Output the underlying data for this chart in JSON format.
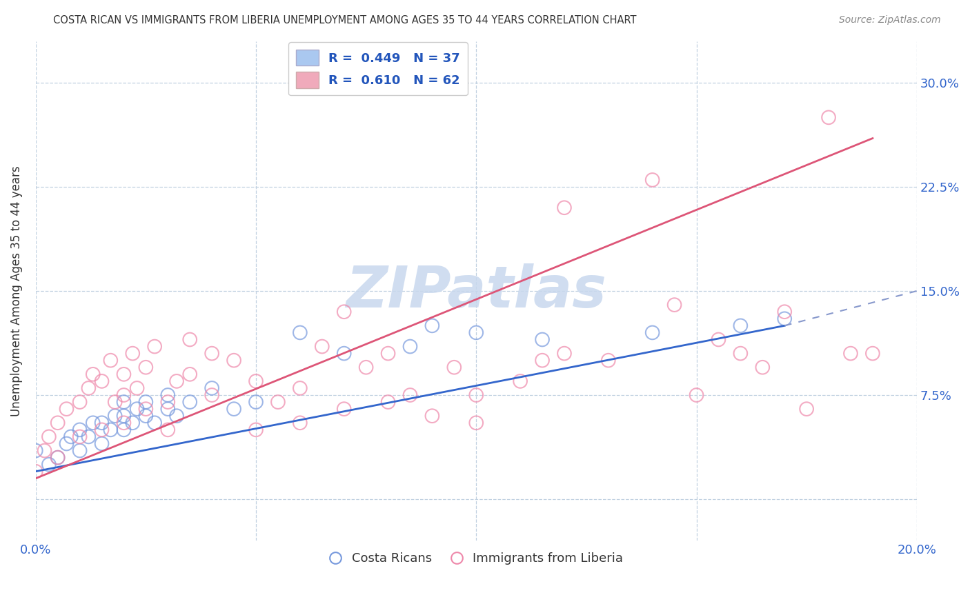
{
  "title": "COSTA RICAN VS IMMIGRANTS FROM LIBERIA UNEMPLOYMENT AMONG AGES 35 TO 44 YEARS CORRELATION CHART",
  "source": "Source: ZipAtlas.com",
  "ylabel": "Unemployment Among Ages 35 to 44 years",
  "watermark": "ZIPatlas",
  "xlim": [
    0.0,
    20.0
  ],
  "ylim": [
    -3.0,
    33.0
  ],
  "yticks": [
    0.0,
    7.5,
    15.0,
    22.5,
    30.0
  ],
  "yticklabels_right": [
    "",
    "7.5%",
    "15.0%",
    "22.5%",
    "30.0%"
  ],
  "xticks": [
    0.0,
    5.0,
    10.0,
    15.0,
    20.0
  ],
  "xticklabels": [
    "0.0%",
    "",
    "",
    "",
    "20.0%"
  ],
  "legend_r_n": [
    {
      "r": "0.449",
      "n": "37",
      "patch_color": "#aac8f0",
      "text_color": "#2255bb"
    },
    {
      "r": "0.610",
      "n": "62",
      "patch_color": "#f0aabb",
      "text_color": "#2255bb"
    }
  ],
  "blue_scatter_x": [
    0.0,
    0.3,
    0.5,
    0.7,
    0.8,
    1.0,
    1.0,
    1.2,
    1.3,
    1.5,
    1.5,
    1.7,
    1.8,
    2.0,
    2.0,
    2.0,
    2.2,
    2.3,
    2.5,
    2.5,
    2.7,
    3.0,
    3.0,
    3.2,
    3.5,
    4.0,
    4.5,
    5.0,
    6.0,
    7.0,
    8.5,
    9.0,
    10.0,
    11.5,
    14.0,
    16.0,
    17.0
  ],
  "blue_scatter_y": [
    3.5,
    2.5,
    3.0,
    4.0,
    4.5,
    3.5,
    5.0,
    4.5,
    5.5,
    4.0,
    5.5,
    5.0,
    6.0,
    5.0,
    6.0,
    7.0,
    5.5,
    6.5,
    6.0,
    7.0,
    5.5,
    6.5,
    7.5,
    6.0,
    7.0,
    8.0,
    6.5,
    7.0,
    12.0,
    10.5,
    11.0,
    12.5,
    12.0,
    11.5,
    12.0,
    12.5,
    13.0
  ],
  "pink_scatter_x": [
    0.0,
    0.2,
    0.3,
    0.5,
    0.5,
    0.7,
    1.0,
    1.0,
    1.2,
    1.3,
    1.5,
    1.5,
    1.7,
    1.8,
    2.0,
    2.0,
    2.0,
    2.2,
    2.3,
    2.5,
    2.5,
    2.7,
    3.0,
    3.0,
    3.2,
    3.5,
    3.5,
    4.0,
    4.0,
    4.5,
    5.0,
    5.0,
    5.5,
    6.0,
    6.0,
    6.5,
    7.0,
    7.0,
    7.5,
    8.0,
    8.0,
    8.5,
    9.0,
    9.5,
    10.0,
    10.0,
    11.0,
    11.5,
    12.0,
    12.0,
    13.0,
    14.0,
    14.5,
    15.0,
    15.5,
    16.0,
    16.5,
    17.0,
    17.5,
    18.0,
    18.5,
    19.0
  ],
  "pink_scatter_y": [
    2.0,
    3.5,
    4.5,
    3.0,
    5.5,
    6.5,
    4.5,
    7.0,
    8.0,
    9.0,
    5.0,
    8.5,
    10.0,
    7.0,
    5.5,
    7.5,
    9.0,
    10.5,
    8.0,
    6.5,
    9.5,
    11.0,
    5.0,
    7.0,
    8.5,
    9.0,
    11.5,
    7.5,
    10.5,
    10.0,
    5.0,
    8.5,
    7.0,
    5.5,
    8.0,
    11.0,
    6.5,
    13.5,
    9.5,
    7.0,
    10.5,
    7.5,
    6.0,
    9.5,
    5.5,
    7.5,
    8.5,
    10.0,
    10.5,
    21.0,
    10.0,
    23.0,
    14.0,
    7.5,
    11.5,
    10.5,
    9.5,
    13.5,
    6.5,
    27.5,
    10.5,
    10.5
  ],
  "blue_line": {
    "x0": 0.0,
    "y0": 2.0,
    "x1": 17.0,
    "y1": 12.5,
    "x_dash_end": 20.0,
    "y_dash_end": 15.0
  },
  "pink_line": {
    "x0": 0.0,
    "y0": 1.5,
    "x1": 19.0,
    "y1": 26.0
  },
  "blue_line_color": "#3366cc",
  "blue_dash_color": "#8899cc",
  "pink_line_color": "#dd5577",
  "blue_scatter_color": "#7799dd",
  "pink_scatter_color": "#ee88aa",
  "background_color": "#ffffff",
  "grid_color": "#c0d0e0",
  "title_color": "#333333",
  "source_color": "#888888",
  "ylabel_color": "#333333",
  "tick_color": "#3366cc",
  "watermark_color": "#c8d8ee"
}
